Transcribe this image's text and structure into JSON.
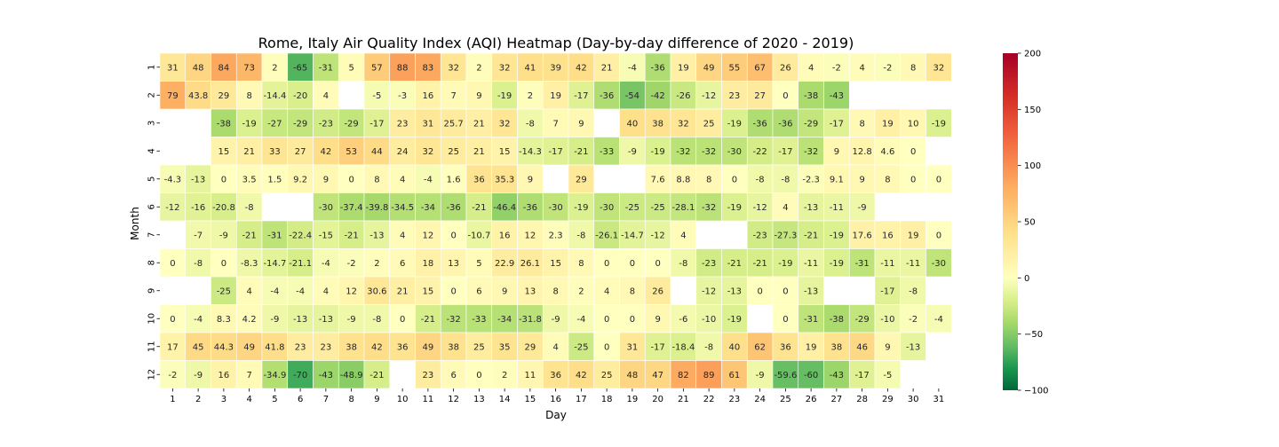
{
  "chart_data": {
    "type": "heatmap",
    "title": "Rome, Italy Air Quality Index (AQI) Heatmap (Day-by-day difference of 2020 - 2019)",
    "xlabel": "Day",
    "ylabel": "Month",
    "x_categories": [
      "1",
      "2",
      "3",
      "4",
      "5",
      "6",
      "7",
      "8",
      "9",
      "10",
      "11",
      "12",
      "13",
      "14",
      "15",
      "16",
      "17",
      "18",
      "19",
      "20",
      "21",
      "22",
      "23",
      "24",
      "25",
      "26",
      "27",
      "28",
      "29",
      "30",
      "31"
    ],
    "y_categories": [
      "1",
      "2",
      "3",
      "4",
      "5",
      "6",
      "7",
      "8",
      "9",
      "10",
      "11",
      "12"
    ],
    "values": [
      [
        31,
        48,
        84,
        73,
        2,
        -65,
        -31,
        5,
        57,
        88,
        83,
        32,
        2,
        32,
        41,
        39,
        42,
        21,
        -4,
        -36,
        19,
        49,
        55,
        67,
        26,
        4,
        -2,
        4,
        -2,
        8,
        32
      ],
      [
        79,
        43.8,
        29,
        8,
        -14.4,
        -20,
        4,
        null,
        -5,
        -3,
        16,
        7,
        9,
        -19,
        2,
        19,
        -17,
        -36,
        -54,
        -42,
        -26,
        -12,
        23,
        27,
        0,
        -38,
        -43,
        null,
        null,
        null,
        null
      ],
      [
        null,
        null,
        -38,
        -19,
        -27,
        -29,
        -23,
        -29,
        -17,
        23,
        31,
        25.7,
        21,
        32,
        -8,
        7,
        9,
        null,
        40,
        38,
        32,
        25,
        -19,
        -36,
        -36,
        -29,
        -17,
        8,
        19,
        10,
        -19
      ],
      [
        null,
        null,
        15,
        21,
        33,
        27,
        42,
        53,
        44,
        24,
        32,
        25,
        21,
        15,
        -14.3,
        -17,
        -21,
        -33,
        -9,
        -19,
        -32,
        -32,
        -30,
        -22,
        -17,
        -32,
        9,
        12.8,
        4.6,
        0,
        null
      ],
      [
        -4.3,
        -13,
        0,
        3.5,
        1.5,
        9.2,
        9,
        0,
        8,
        4,
        -4,
        1.6,
        36,
        35.3,
        9,
        null,
        29,
        null,
        null,
        7.6,
        8.8,
        8,
        0,
        -8,
        -8,
        -2.3,
        9.1,
        9,
        8,
        0,
        0
      ],
      [
        -12,
        -16,
        -20.8,
        -8,
        null,
        null,
        -30,
        -37.4,
        -39.8,
        -34.5,
        -34,
        -36,
        -21,
        -46.4,
        -36,
        -30,
        -19,
        -30,
        -25,
        -25,
        -28.1,
        -32,
        -19,
        -12,
        4,
        -13,
        -11,
        -9,
        null,
        null,
        null
      ],
      [
        null,
        -7,
        -9,
        -21,
        -31,
        -22.4,
        -15,
        -21,
        -13,
        4,
        12,
        0,
        -10.7,
        16,
        12,
        2.3,
        -8,
        -26.1,
        -14.7,
        -12,
        4,
        null,
        null,
        -23,
        -27.3,
        -21,
        -19,
        17.6,
        16,
        19,
        0
      ],
      [
        0,
        -8,
        0,
        -8.3,
        -14.7,
        -21.1,
        -4,
        -2,
        2,
        6,
        18,
        13,
        5,
        22.9,
        26.1,
        15,
        8,
        0,
        0,
        0,
        -8,
        -23,
        -21,
        -21,
        -19,
        -11,
        -19,
        -31,
        -11,
        -11,
        -30
      ],
      [
        null,
        null,
        -25,
        4,
        -4,
        -4,
        4,
        12,
        30.6,
        21,
        15,
        0,
        6,
        9,
        13,
        8,
        2,
        4,
        8,
        26,
        null,
        -12,
        -13,
        0,
        0,
        -13,
        null,
        null,
        -17,
        -8,
        null
      ],
      [
        0,
        -4,
        8.3,
        4.2,
        -9,
        -13,
        -13,
        -9,
        -8,
        0,
        -21,
        -32,
        -33,
        -34,
        -31.8,
        -9,
        -4,
        0,
        0,
        9,
        -6,
        -10,
        -19,
        null,
        0,
        -31,
        -38,
        -29,
        -10,
        -2,
        -4
      ],
      [
        17,
        45,
        44.3,
        49,
        41.8,
        23,
        23,
        38,
        42,
        36,
        49,
        38,
        25,
        35,
        29,
        4,
        -25,
        0,
        31,
        -17,
        -18.4,
        -8,
        40,
        62,
        36,
        19,
        38,
        46,
        9,
        -13,
        null
      ],
      [
        -2,
        -9,
        16,
        7,
        -34.9,
        -70,
        -43,
        -48.9,
        -21,
        null,
        23,
        6,
        0,
        2,
        11,
        36,
        42,
        25,
        48,
        47,
        82,
        89,
        61,
        -9,
        -59.6,
        -60,
        -43,
        -17,
        -5,
        null,
        null
      ]
    ],
    "colorbar": {
      "vmin": -100,
      "vmax": 200,
      "center": 0,
      "colormap": "RdYlGn_r",
      "ticks": [
        "-100",
        "-50",
        "0",
        "50",
        "100",
        "150",
        "200"
      ]
    },
    "grid": false
  }
}
